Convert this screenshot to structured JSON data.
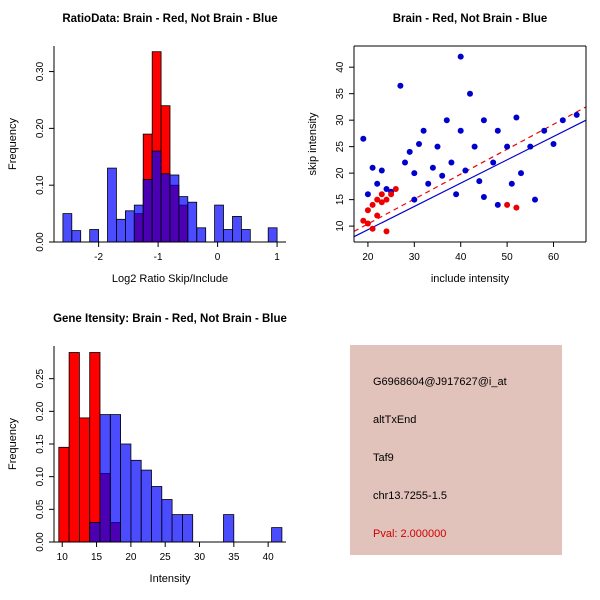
{
  "figure": {
    "background": "#ffffff"
  },
  "info_box": {
    "background": "#e2c3bb",
    "lines": [
      {
        "text": "G6968604@J917627@i_at",
        "color": "#000000"
      },
      {
        "text": "altTxEnd",
        "color": "#000000"
      },
      {
        "text": "Taf9",
        "color": "#000000"
      },
      {
        "text": "chr13.7255-1.5",
        "color": "#000000"
      },
      {
        "text": "Pval: 2.000000",
        "color": "#cc0000"
      }
    ]
  },
  "chart_data": [
    {
      "id": "ratio-hist",
      "type": "histogram",
      "title": "RatioData: Brain - Red, Not Brain - Blue",
      "xlabel": "Log2 Ratio Skip/Include",
      "ylabel": "Frequency",
      "xlim": [
        -2.75,
        1.15
      ],
      "ylim": [
        0,
        0.345
      ],
      "xticks": [
        -2,
        -1,
        0,
        1
      ],
      "xtick_labels": [
        "-2",
        "-1",
        "0",
        "1"
      ],
      "yticks": [
        0,
        0.1,
        0.2,
        0.3
      ],
      "ytick_labels": [
        "0.00",
        "0.10",
        "0.20",
        "0.30"
      ],
      "bin_width": 0.15,
      "legend": {
        "Brain": "red",
        "Not Brain": "blue"
      },
      "grid": false,
      "series": [
        {
          "name": "Brain",
          "color": "#ff0000",
          "opacity": 1,
          "bins": [
            [
              -1.4,
              0.05
            ],
            [
              -1.25,
              0.19
            ],
            [
              -1.1,
              0.335
            ],
            [
              -0.95,
              0.24
            ],
            [
              -0.8,
              0.1
            ],
            [
              -0.65,
              0.065
            ]
          ]
        },
        {
          "name": "Not Brain",
          "color": "#0000ff",
          "opacity": 0.7,
          "bins": [
            [
              -2.6,
              0.05
            ],
            [
              -2.45,
              0.02
            ],
            [
              -2.15,
              0.022
            ],
            [
              -1.85,
              0.13
            ],
            [
              -1.7,
              0.04
            ],
            [
              -1.55,
              0.055
            ],
            [
              -1.4,
              0.065
            ],
            [
              -1.25,
              0.11
            ],
            [
              -1.1,
              0.16
            ],
            [
              -0.95,
              0.12
            ],
            [
              -0.8,
              0.118
            ],
            [
              -0.65,
              0.08
            ],
            [
              -0.5,
              0.07
            ],
            [
              -0.35,
              0.025
            ],
            [
              -0.05,
              0.065
            ],
            [
              0.1,
              0.022
            ],
            [
              0.25,
              0.045
            ],
            [
              0.4,
              0.022
            ],
            [
              0.85,
              0.025
            ]
          ]
        }
      ]
    },
    {
      "id": "scatter",
      "type": "scatter",
      "box": true,
      "title": "Brain - Red, Not Brain - Blue",
      "xlabel": "include intensity",
      "ylabel": "skip intensity",
      "xlim": [
        17,
        67
      ],
      "ylim": [
        7,
        44
      ],
      "xticks": [
        20,
        30,
        40,
        50,
        60
      ],
      "xtick_labels": [
        "20",
        "30",
        "40",
        "50",
        "60"
      ],
      "yticks": [
        10,
        15,
        20,
        25,
        30,
        35,
        40
      ],
      "ytick_labels": [
        "10",
        "15",
        "20",
        "25",
        "30",
        "35",
        "40"
      ],
      "legend": {
        "Brain": "red",
        "Not Brain": "blue"
      },
      "grid": false,
      "series": [
        {
          "name": "Not Brain",
          "color": "#0000cd",
          "points": [
            [
              19,
              26.5
            ],
            [
              20,
              16
            ],
            [
              21,
              21
            ],
            [
              22,
              18
            ],
            [
              23,
              20.5
            ],
            [
              24,
              17
            ],
            [
              25,
              16.5
            ],
            [
              27,
              36.5
            ],
            [
              28,
              22
            ],
            [
              29,
              24
            ],
            [
              30,
              20
            ],
            [
              30,
              15
            ],
            [
              31,
              25.5
            ],
            [
              32,
              28
            ],
            [
              33,
              18
            ],
            [
              34,
              21
            ],
            [
              35,
              25
            ],
            [
              36,
              19.5
            ],
            [
              37,
              30
            ],
            [
              38,
              22
            ],
            [
              39,
              16
            ],
            [
              40,
              42
            ],
            [
              40,
              28
            ],
            [
              41,
              20.5
            ],
            [
              42,
              35
            ],
            [
              43,
              25
            ],
            [
              44,
              18.5
            ],
            [
              45,
              30
            ],
            [
              45,
              15.5
            ],
            [
              47,
              22
            ],
            [
              48,
              28
            ],
            [
              48,
              14
            ],
            [
              50,
              25
            ],
            [
              51,
              18
            ],
            [
              52,
              30.5
            ],
            [
              53,
              20
            ],
            [
              55,
              25
            ],
            [
              56,
              15
            ],
            [
              58,
              28
            ],
            [
              60,
              25.5
            ],
            [
              62,
              30
            ],
            [
              65,
              31
            ]
          ]
        },
        {
          "name": "Brain",
          "color": "#ee0000",
          "points": [
            [
              19,
              11
            ],
            [
              20,
              10.5
            ],
            [
              20,
              13
            ],
            [
              21,
              14
            ],
            [
              21,
              9.5
            ],
            [
              22,
              12
            ],
            [
              22,
              15
            ],
            [
              23,
              14.5
            ],
            [
              23,
              16
            ],
            [
              24,
              15
            ],
            [
              25,
              16
            ],
            [
              26,
              17
            ],
            [
              24,
              9
            ],
            [
              50,
              14
            ],
            [
              52,
              13.5
            ]
          ]
        }
      ],
      "lines": [
        {
          "name": "brain-fit-line",
          "color": "#ee0000",
          "dashed": true,
          "x": [
            17,
            67
          ],
          "y": [
            9.0,
            32.5
          ]
        },
        {
          "name": "notbrain-fit-line",
          "color": "#0000cd",
          "dashed": false,
          "x": [
            17,
            67
          ],
          "y": [
            8.0,
            30.0
          ]
        }
      ]
    },
    {
      "id": "gene-hist",
      "type": "histogram",
      "title": "Gene Itensity: Brain - Red, Not Brain - Blue",
      "xlabel": "Intensity",
      "ylabel": "Frequency",
      "xlim": [
        8.8,
        42.6
      ],
      "ylim": [
        0,
        0.3
      ],
      "xticks": [
        10,
        15,
        20,
        25,
        30,
        35,
        40
      ],
      "xtick_labels": [
        "10",
        "15",
        "20",
        "25",
        "30",
        "35",
        "40"
      ],
      "yticks": [
        0,
        0.05,
        0.1,
        0.15,
        0.2,
        0.25
      ],
      "ytick_labels": [
        "0.00",
        "0.05",
        "0.10",
        "0.15",
        "0.20",
        "0.25"
      ],
      "bin_width": 1.5,
      "legend": {
        "Brain": "red",
        "Not Brain": "blue"
      },
      "grid": false,
      "series": [
        {
          "name": "Brain",
          "color": "#ff0000",
          "opacity": 1,
          "bins": [
            [
              9.5,
              0.145
            ],
            [
              11.0,
              0.29
            ],
            [
              12.5,
              0.19
            ],
            [
              14.0,
              0.29
            ],
            [
              15.5,
              0.105
            ],
            [
              17.0,
              0.03
            ]
          ]
        },
        {
          "name": "Not Brain",
          "color": "#0000ff",
          "opacity": 0.7,
          "bins": [
            [
              14.0,
              0.03
            ],
            [
              15.5,
              0.195
            ],
            [
              17.0,
              0.195
            ],
            [
              18.5,
              0.15
            ],
            [
              20.0,
              0.125
            ],
            [
              21.5,
              0.11
            ],
            [
              23.0,
              0.085
            ],
            [
              24.5,
              0.065
            ],
            [
              26.0,
              0.042
            ],
            [
              27.5,
              0.042
            ],
            [
              33.5,
              0.042
            ],
            [
              40.5,
              0.022
            ]
          ]
        }
      ]
    }
  ]
}
